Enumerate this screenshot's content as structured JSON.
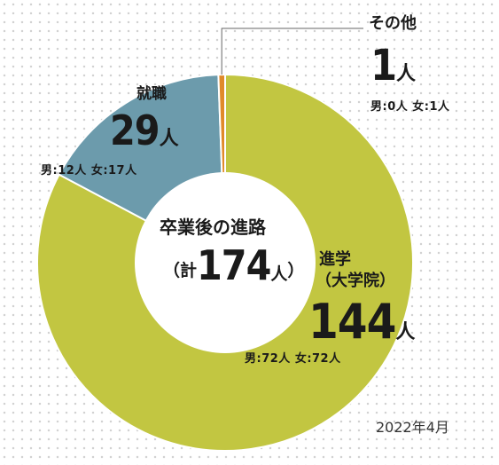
{
  "chart_data": {
    "type": "pie",
    "style": "donut",
    "title": "卒業後の進路",
    "total": {
      "open": "（計",
      "value": "174",
      "unit": "人",
      "close": "）"
    },
    "slices": [
      {
        "name": "進学",
        "name_sub": "（大学院）",
        "value": 144,
        "unit": "人",
        "breakdown": "男:72人 女:72人",
        "color": "#c2c641"
      },
      {
        "name": "就職",
        "value": 29,
        "unit": "人",
        "breakdown": "男:12人 女:17人",
        "color": "#6c9bac"
      },
      {
        "name": "その他",
        "value": 1,
        "unit": "人",
        "breakdown": "男:0人 女:1人",
        "color": "#e08a2a"
      }
    ],
    "colors": {
      "separator": "#ffffff",
      "center": "#ffffff",
      "leader": "#666666"
    },
    "date": "2022年4月"
  }
}
